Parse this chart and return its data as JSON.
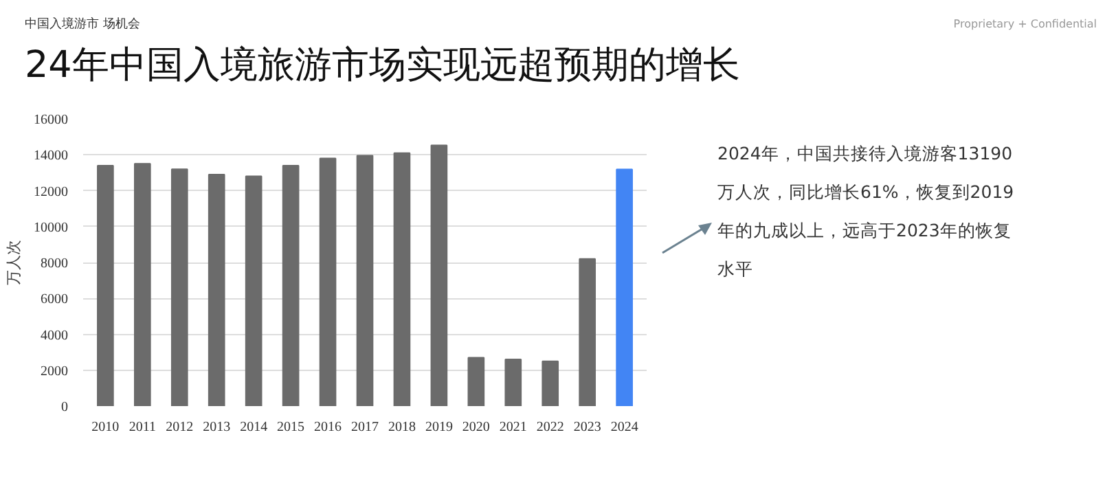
{
  "chart_data": {
    "type": "bar",
    "title": "24年中国入境旅游市场实现远超预期的增长",
    "subtitle": "中国入境游市 场机会",
    "ylabel": "万人次",
    "categories": [
      "2010",
      "2011",
      "2012",
      "2013",
      "2014",
      "2015",
      "2016",
      "2017",
      "2018",
      "2019",
      "2020",
      "2021",
      "2022",
      "2023",
      "2024"
    ],
    "values": [
      13400,
      13500,
      13200,
      12900,
      12800,
      13400,
      13800,
      13950,
      14100,
      14530,
      2700,
      2600,
      2500,
      8200,
      13190
    ],
    "colors": [
      "#6b6b6b",
      "#6b6b6b",
      "#6b6b6b",
      "#6b6b6b",
      "#6b6b6b",
      "#6b6b6b",
      "#6b6b6b",
      "#6b6b6b",
      "#6b6b6b",
      "#6b6b6b",
      "#6b6b6b",
      "#6b6b6b",
      "#6b6b6b",
      "#6b6b6b",
      "#4285f4"
    ],
    "ylim": [
      0,
      16000
    ],
    "yticks": [
      0,
      2000,
      4000,
      6000,
      8000,
      10000,
      12000,
      14000,
      16000
    ],
    "grid": "y",
    "annotations": [
      "Proprietary + Confidential",
      "2024年，中国共接待入境游客13190万人次，同比增长61%，恢复到2019年的九成以上，远高于2023年的恢复水平"
    ]
  }
}
